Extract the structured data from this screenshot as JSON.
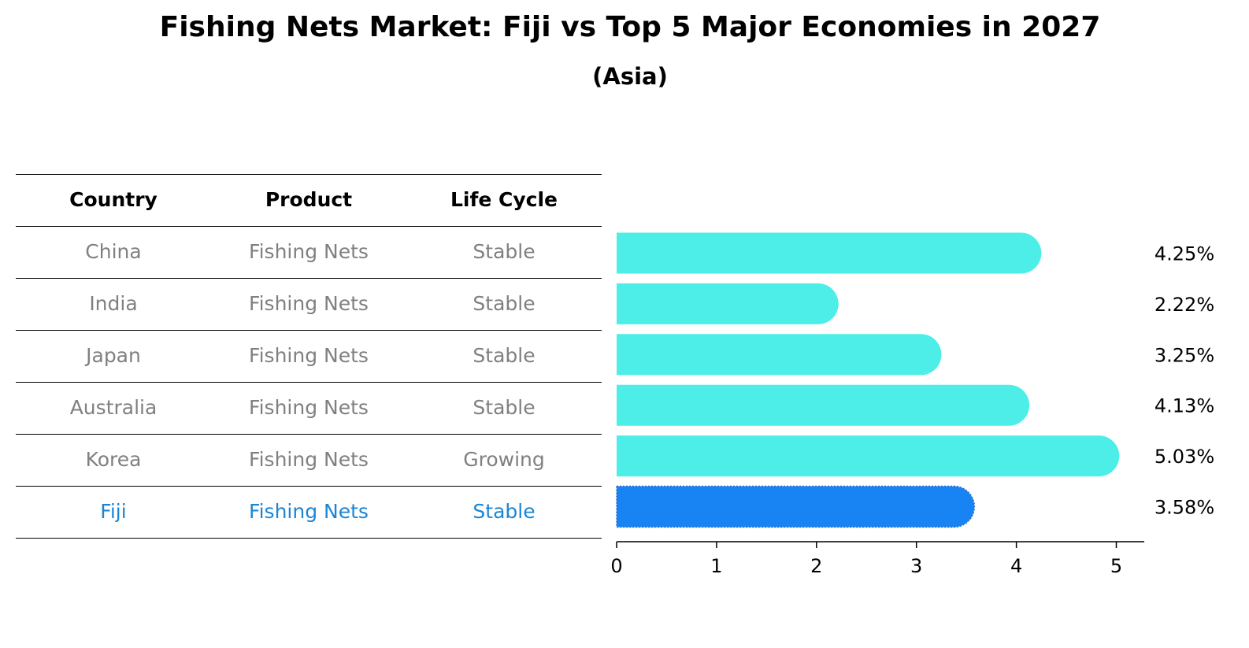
{
  "title": "Fishing Nets Market: Fiji vs Top 5 Major Economies in 2027",
  "subtitle": "(Asia)",
  "table": {
    "headers": [
      "Country",
      "Product",
      "Life Cycle"
    ],
    "rows": [
      [
        "China",
        "Fishing Nets",
        "Stable"
      ],
      [
        "India",
        "Fishing Nets",
        "Stable"
      ],
      [
        "Japan",
        "Fishing Nets",
        "Stable"
      ],
      [
        "Australia",
        "Fishing Nets",
        "Stable"
      ],
      [
        "Korea",
        "Fishing Nets",
        "Growing"
      ],
      [
        "Fiji",
        "Fishing Nets",
        "Stable"
      ]
    ],
    "highlight_row": 5
  },
  "colors": {
    "bar": "#4deee8",
    "highlight": "#1884f3",
    "muted_text": "#808080",
    "highlight_text": "#1a86d6"
  },
  "chart_data": {
    "type": "bar",
    "orientation": "horizontal",
    "categories": [
      "China",
      "India",
      "Japan",
      "Australia",
      "Korea",
      "Fiji"
    ],
    "values": [
      4.25,
      2.22,
      3.25,
      4.13,
      5.03,
      3.58
    ],
    "value_labels": [
      "4.25%",
      "2.22%",
      "3.25%",
      "4.13%",
      "5.03%",
      "3.58%"
    ],
    "xlim": [
      0,
      5.28
    ],
    "xticks": [
      0,
      1,
      2,
      3,
      4,
      5
    ],
    "xlabel": "",
    "ylabel": "",
    "grid": false
  }
}
